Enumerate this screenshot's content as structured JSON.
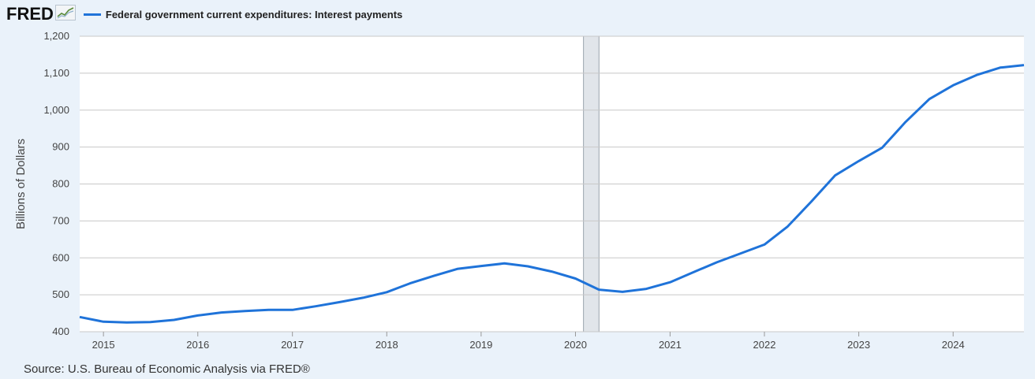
{
  "header": {
    "logo_text": "FRED",
    "logo_icon": "line-chart-icon"
  },
  "source_text": "Source: U.S. Bureau of Economic Analysis via FRED®",
  "colors": {
    "line": "#1f73d9",
    "recession": "#e1e5ea",
    "background": "#eaf2fa",
    "plot": "#ffffff",
    "grid": "#c8c8c8"
  },
  "chart_data": {
    "type": "line",
    "title": "",
    "xlabel": "",
    "ylabel": "Billions of Dollars",
    "xlim": [
      "2014-10-01",
      "2024-10-01"
    ],
    "ylim": [
      400,
      1200
    ],
    "yticks": [
      400,
      500,
      600,
      700,
      800,
      900,
      1000,
      1100,
      1200
    ],
    "ytick_labels": [
      "400",
      "500",
      "600",
      "700",
      "800",
      "900",
      "1,000",
      "1,100",
      "1,200"
    ],
    "xticks": [
      "2015-01-01",
      "2016-01-01",
      "2017-01-01",
      "2018-01-01",
      "2019-01-01",
      "2020-01-01",
      "2021-01-01",
      "2022-01-01",
      "2023-01-01",
      "2024-01-01"
    ],
    "xtick_labels": [
      "2015",
      "2016",
      "2017",
      "2018",
      "2019",
      "2020",
      "2021",
      "2022",
      "2023",
      "2024"
    ],
    "grid": true,
    "legend": "top-left",
    "recessions": [
      [
        "2020-02-01",
        "2020-04-01"
      ]
    ],
    "series": [
      {
        "name": "Federal government current expenditures: Interest payments",
        "x": [
          "2014-10-01",
          "2015-01-01",
          "2015-04-01",
          "2015-07-01",
          "2015-10-01",
          "2016-01-01",
          "2016-04-01",
          "2016-07-01",
          "2016-10-01",
          "2017-01-01",
          "2017-04-01",
          "2017-07-01",
          "2017-10-01",
          "2018-01-01",
          "2018-04-01",
          "2018-07-01",
          "2018-10-01",
          "2019-01-01",
          "2019-04-01",
          "2019-07-01",
          "2019-10-01",
          "2020-01-01",
          "2020-04-01",
          "2020-07-01",
          "2020-10-01",
          "2021-01-01",
          "2021-04-01",
          "2021-07-01",
          "2021-10-01",
          "2022-01-01",
          "2022-04-01",
          "2022-07-01",
          "2022-10-01",
          "2023-01-01",
          "2023-04-01",
          "2023-07-01",
          "2023-10-01",
          "2024-01-01",
          "2024-04-01",
          "2024-07-01",
          "2024-10-01"
        ],
        "values": [
          440,
          427,
          425,
          426,
          432,
          444,
          452,
          456,
          459,
          459,
          469,
          480,
          492,
          507,
          531,
          551,
          570,
          578,
          585,
          577,
          563,
          544,
          514,
          508,
          516,
          534,
          561,
          588,
          612,
          636,
          685,
          752,
          823,
          862,
          898,
          968,
          1030,
          1067,
          1095,
          1115,
          1122
        ]
      }
    ]
  }
}
